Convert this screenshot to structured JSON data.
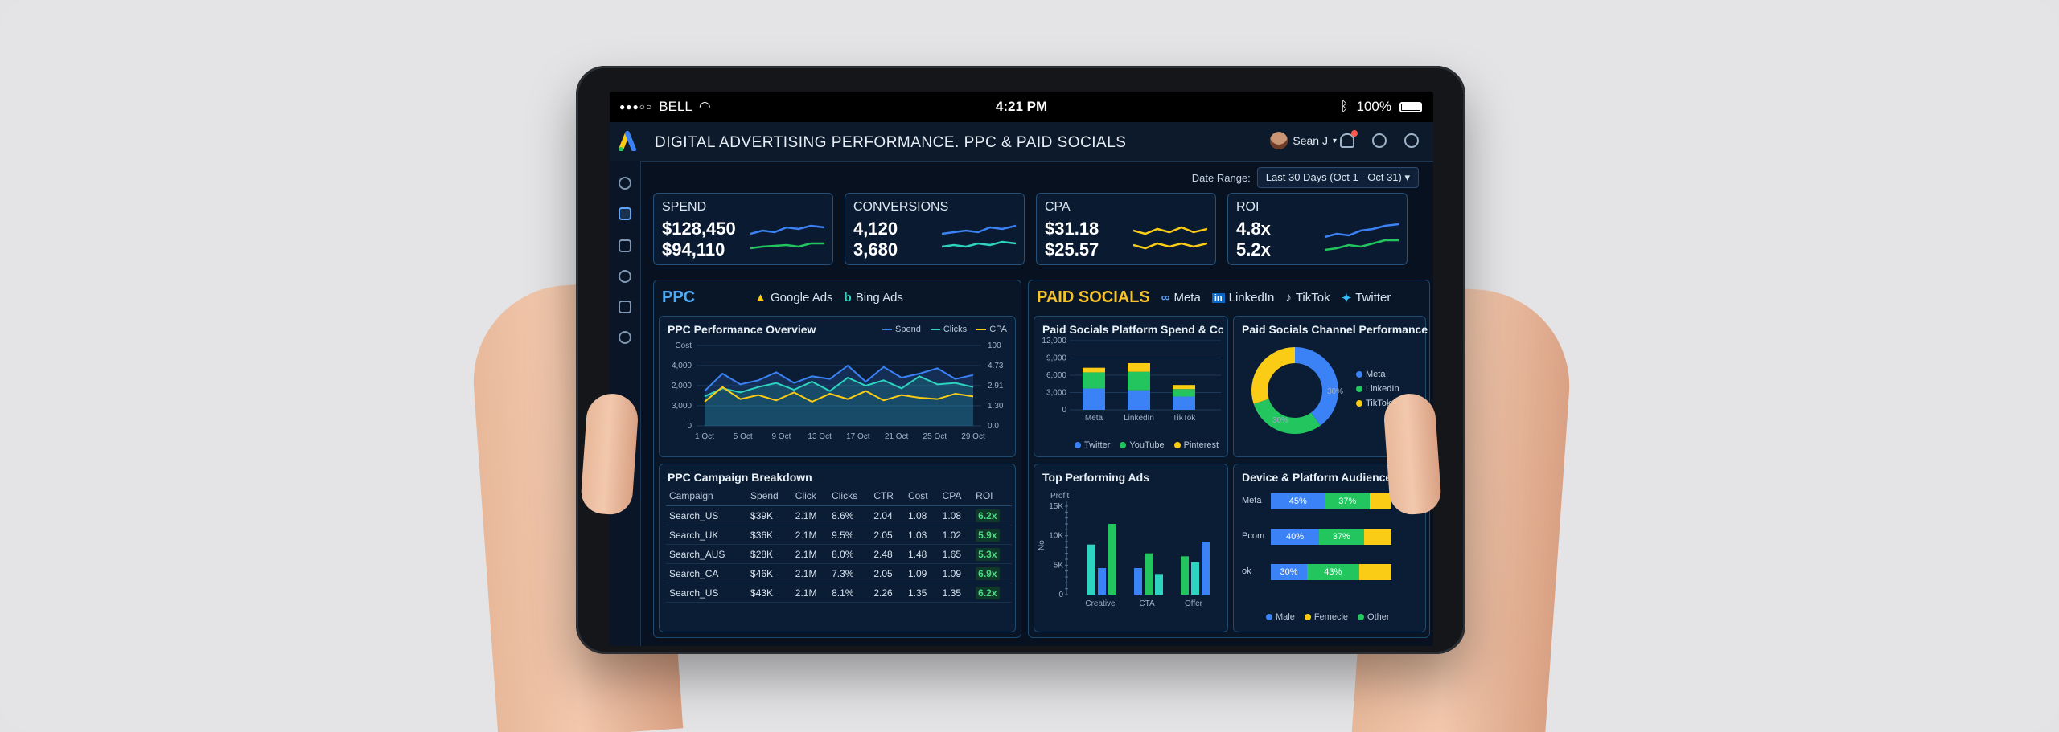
{
  "status_bar": {
    "carrier": "BELL",
    "time": "4:21 PM",
    "battery": "100%"
  },
  "header": {
    "title": "DIGITAL ADVERTISING PERFORMANCE. PPC & PAID SOCIALS",
    "user": "Sean J"
  },
  "date_range": {
    "label": "Date Range:",
    "value": "Last 30 Days (Oct 1 - Oct 31)"
  },
  "kpis": [
    {
      "label": "SPEND",
      "value1": "$128,450",
      "value2": "$94,110"
    },
    {
      "label": "CONVERSIONS",
      "value1": "4,120",
      "value2": "3,680"
    },
    {
      "label": "CPA",
      "value1": "$31.18",
      "value2": "$25.57"
    },
    {
      "label": "ROI",
      "value1": "4.8x",
      "value2": "5.2x"
    }
  ],
  "ppc": {
    "title": "PPC",
    "platforms": [
      "Google Ads",
      "Bing Ads"
    ],
    "overview": {
      "title": "PPC Performance Overview",
      "legend": [
        "Spend",
        "Clicks",
        "CPA"
      ],
      "y_left": [
        "Cost",
        "4,000",
        "2,000",
        "3,000",
        "0"
      ],
      "y_right": [
        "100",
        "4.73",
        "2.91",
        "1.30",
        "0.0"
      ],
      "x_ticks": [
        "1 Oct",
        "5 Oct",
        "9 Oct",
        "13 Oct",
        "17 Oct",
        "21 Oct",
        "25 Oct",
        "29 Oct"
      ]
    },
    "campaigns": {
      "title": "PPC Campaign Breakdown",
      "columns": [
        "Campaign",
        "Spend",
        "Click",
        "Clicks",
        "CTR",
        "Cost",
        "CPA",
        "ROI"
      ],
      "rows": [
        [
          "Search_US",
          "$39K",
          "2.1M",
          "8.6%",
          "2.04",
          "1.08",
          "1.08",
          "6.2x"
        ],
        [
          "Search_UK",
          "$36K",
          "2.1M",
          "9.5%",
          "2.05",
          "1.03",
          "1.02",
          "5.9x"
        ],
        [
          "Search_AUS",
          "$28K",
          "2.1M",
          "8.0%",
          "2.48",
          "1.48",
          "1.65",
          "5.3x"
        ],
        [
          "Search_CA",
          "$46K",
          "2.1M",
          "7.3%",
          "2.05",
          "1.09",
          "1.09",
          "6.9x"
        ],
        [
          "Search_US",
          "$43K",
          "2.1M",
          "8.1%",
          "2.26",
          "1.35",
          "1.35",
          "6.2x"
        ]
      ]
    }
  },
  "paid_socials": {
    "title": "PAID SOCIALS",
    "platforms": [
      "Meta",
      "LinkedIn",
      "TikTok",
      "Twitter"
    ],
    "spend_conv": {
      "title": "Paid Socials Platform Spend & Conversions",
      "y_ticks": [
        "12,000",
        "9,000",
        "6,000",
        "3,000",
        "0"
      ],
      "legend": [
        "Twitter",
        "YouTube",
        "Pinterest"
      ]
    },
    "channel_perf": {
      "title": "Paid Socials Channel Performance",
      "legend": [
        "Meta",
        "LinkedIn",
        "TikTok"
      ],
      "labels": [
        "30%",
        "30%"
      ]
    },
    "top_ads": {
      "title": "Top Performing Ads",
      "y_label": "Profit",
      "y_axis_title": "No",
      "y_ticks": [
        "15K",
        "10K",
        "5K",
        "0"
      ]
    },
    "audience": {
      "title": "Device & Platform Audience",
      "rows": [
        {
          "label": "Meta",
          "a": "45%",
          "b": "37%"
        },
        {
          "label": "Pcom",
          "a": "40%",
          "b": "37%"
        },
        {
          "label": "ok",
          "a": "30%",
          "b": "43%"
        }
      ],
      "legend": [
        "Male",
        "Femecle",
        "Other"
      ]
    }
  },
  "chart_data": [
    {
      "type": "line",
      "title": "PPC Performance Overview",
      "x": [
        "1 Oct",
        "3 Oct",
        "5 Oct",
        "7 Oct",
        "9 Oct",
        "11 Oct",
        "13 Oct",
        "15 Oct",
        "17 Oct",
        "19 Oct",
        "21 Oct",
        "23 Oct",
        "25 Oct",
        "27 Oct",
        "29 Oct",
        "31 Oct"
      ],
      "ylim": [
        0,
        6000
      ],
      "series": [
        {
          "name": "Spend",
          "values": [
            2600,
            3900,
            3100,
            3400,
            4000,
            3200,
            3700,
            3500,
            4500,
            3300,
            4400,
            3600,
            3900,
            4300,
            3500,
            3800
          ]
        },
        {
          "name": "Clicks",
          "values": [
            2200,
            2800,
            2500,
            2900,
            3200,
            2700,
            3300,
            2600,
            3600,
            3000,
            3400,
            2800,
            3700,
            3100,
            3200,
            2900
          ]
        },
        {
          "name": "CPA",
          "values": [
            1800,
            2900,
            2000,
            2300,
            1900,
            2500,
            1800,
            2400,
            2000,
            2600,
            1900,
            2300,
            2100,
            2000,
            2400,
            2200
          ]
        }
      ]
    },
    {
      "type": "bar",
      "title": "Paid Socials Platform Spend & Conversions",
      "categories": [
        "Meta",
        "LinkedIn",
        "TikTok"
      ],
      "ylim": [
        0,
        12000
      ],
      "series": [
        {
          "name": "Twitter",
          "values": [
            3700,
            3400,
            2300
          ]
        },
        {
          "name": "YouTube",
          "values": [
            2800,
            3200,
            1300
          ]
        },
        {
          "name": "Pinterest",
          "values": [
            800,
            1500,
            700
          ]
        }
      ]
    },
    {
      "type": "pie",
      "title": "Paid Socials Channel Performance",
      "categories": [
        "Meta",
        "LinkedIn",
        "TikTok"
      ],
      "values": [
        40,
        30,
        30
      ]
    },
    {
      "type": "bar",
      "title": "Top Performing Ads",
      "categories": [
        "Creative",
        "CTA",
        "Offer"
      ],
      "ylim": [
        0,
        15000
      ],
      "series": [
        {
          "name": "A",
          "values": [
            8500,
            4500,
            6500
          ]
        },
        {
          "name": "B",
          "values": [
            4500,
            7000,
            5500
          ]
        },
        {
          "name": "C",
          "values": [
            12000,
            3500,
            9000
          ]
        }
      ]
    },
    {
      "type": "bar",
      "title": "Device & Platform Audience",
      "categories": [
        "Meta",
        "Pcom",
        "ok"
      ],
      "series": [
        {
          "name": "Male",
          "values": [
            45,
            40,
            30
          ]
        },
        {
          "name": "Femecle",
          "values": [
            37,
            37,
            43
          ]
        },
        {
          "name": "Other",
          "values": [
            18,
            23,
            27
          ]
        }
      ]
    }
  ],
  "colors": {
    "blue": "#3b82f6",
    "teal": "#2dd4bf",
    "green": "#22c55e",
    "yellow": "#facc15",
    "accent": "#4fa8f0"
  }
}
